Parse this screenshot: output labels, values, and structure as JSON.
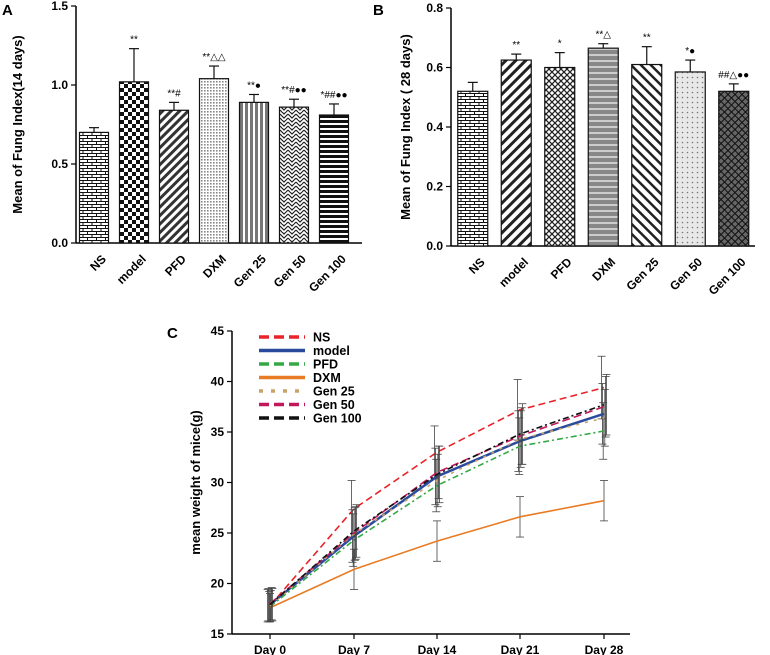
{
  "chart_data": [
    {
      "panel": "A",
      "type": "bar",
      "ylabel": "Mean of Fung Index(14 days)",
      "ylim": [
        0,
        1.5
      ],
      "yticks": [
        "0.0",
        "0.5",
        "1.0",
        "1.5"
      ],
      "categories": [
        "NS",
        "model",
        "PFD",
        "DXM",
        "Gen 25",
        "Gen 50",
        "Gen 100"
      ],
      "values": [
        0.7,
        1.02,
        0.84,
        1.04,
        0.89,
        0.86,
        0.81
      ],
      "errors": [
        0.03,
        0.21,
        0.05,
        0.08,
        0.05,
        0.05,
        0.07
      ],
      "annotations": [
        "",
        "**",
        "**#",
        "**△△",
        "**●",
        "**#●●",
        "*##●●"
      ]
    },
    {
      "panel": "B",
      "type": "bar",
      "ylabel": "Mean of Fung Index ( 28 days)",
      "ylim": [
        0,
        0.8
      ],
      "yticks": [
        "0.0",
        "0.2",
        "0.4",
        "0.6",
        "0.8"
      ],
      "categories": [
        "NS",
        "model",
        "PFD",
        "DXM",
        "Gen 25",
        "Gen 50",
        "Gen 100"
      ],
      "values": [
        0.52,
        0.625,
        0.6,
        0.665,
        0.61,
        0.585,
        0.52
      ],
      "errors": [
        0.03,
        0.02,
        0.05,
        0.015,
        0.06,
        0.04,
        0.025
      ],
      "annotations": [
        "",
        "**",
        "*",
        "**△",
        "**",
        "*●",
        "##△●●"
      ]
    },
    {
      "panel": "C",
      "type": "line",
      "ylabel": "mean weight of mice(g)",
      "ylim": [
        15,
        45
      ],
      "yticks": [
        "15",
        "20",
        "25",
        "30",
        "35",
        "40",
        "45"
      ],
      "x": [
        "Day 0",
        "Day 7",
        "Day 14",
        "Day 21",
        "Day 28"
      ],
      "series": [
        {
          "name": "NS",
          "color": "#e8232a",
          "dash": "7,4",
          "values": [
            17.8,
            27.4,
            33.0,
            37.2,
            39.4
          ],
          "errors": [
            1.6,
            2.8,
            2.6,
            3.0,
            3.1
          ]
        },
        {
          "name": "model",
          "color": "#2a4b9b",
          "dash": "",
          "values": [
            17.9,
            24.7,
            30.6,
            34.1,
            36.8
          ],
          "errors": [
            1.6,
            2.6,
            2.8,
            3.0,
            3.0
          ]
        },
        {
          "name": "PFD",
          "color": "#35a846",
          "dash": "6,3,2,3",
          "values": [
            17.7,
            24.3,
            29.7,
            33.6,
            35.1
          ],
          "errors": [
            1.5,
            2.6,
            2.6,
            2.8,
            2.8
          ]
        },
        {
          "name": "DXM",
          "color": "#e87b24",
          "dash": "",
          "values": [
            17.6,
            21.4,
            24.2,
            26.6,
            28.2
          ],
          "errors": [
            1.4,
            2.0,
            2.0,
            2.0,
            2.0
          ]
        },
        {
          "name": "Gen 25",
          "color": "#c9a36a",
          "dash": "3,6",
          "values": [
            17.8,
            24.9,
            30.2,
            34.3,
            36.4
          ],
          "errors": [
            1.5,
            2.6,
            2.6,
            2.8,
            2.8
          ]
        },
        {
          "name": "Gen 50",
          "color": "#c2185b",
          "dash": "8,4",
          "values": [
            18.0,
            25.0,
            31.0,
            34.6,
            37.5
          ],
          "errors": [
            1.6,
            2.6,
            2.6,
            2.8,
            3.0
          ]
        },
        {
          "name": "Gen 100",
          "color": "#111111",
          "dash": "6,3,2,3",
          "values": [
            17.9,
            25.2,
            30.8,
            34.8,
            37.7
          ],
          "errors": [
            1.6,
            2.6,
            2.8,
            3.0,
            3.0
          ]
        }
      ]
    }
  ]
}
